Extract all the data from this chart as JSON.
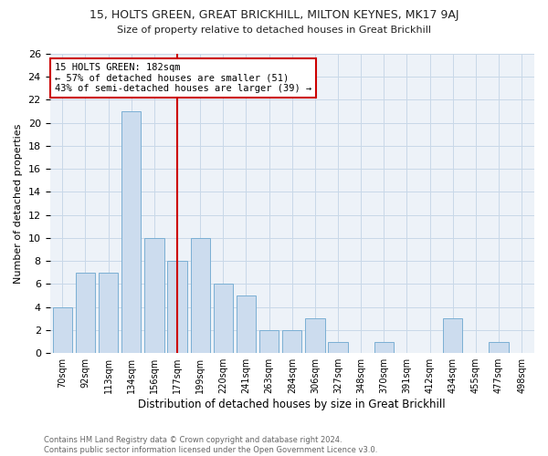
{
  "title1": "15, HOLTS GREEN, GREAT BRICKHILL, MILTON KEYNES, MK17 9AJ",
  "title2": "Size of property relative to detached houses in Great Brickhill",
  "xlabel": "Distribution of detached houses by size in Great Brickhill",
  "ylabel": "Number of detached properties",
  "footer1": "Contains HM Land Registry data © Crown copyright and database right 2024.",
  "footer2": "Contains public sector information licensed under the Open Government Licence v3.0.",
  "categories": [
    "70sqm",
    "92sqm",
    "113sqm",
    "134sqm",
    "156sqm",
    "177sqm",
    "199sqm",
    "220sqm",
    "241sqm",
    "263sqm",
    "284sqm",
    "306sqm",
    "327sqm",
    "348sqm",
    "370sqm",
    "391sqm",
    "412sqm",
    "434sqm",
    "455sqm",
    "477sqm",
    "498sqm"
  ],
  "values": [
    4,
    7,
    7,
    21,
    10,
    8,
    10,
    6,
    5,
    2,
    2,
    3,
    1,
    0,
    1,
    0,
    0,
    3,
    0,
    1,
    0
  ],
  "bar_color": "#ccdcee",
  "bar_edge_color": "#7aafd4",
  "highlight_line_index": 5,
  "annotation_title": "15 HOLTS GREEN: 182sqm",
  "annotation_line1": "← 57% of detached houses are smaller (51)",
  "annotation_line2": "43% of semi-detached houses are larger (39) →",
  "box_color": "#cc0000",
  "ylim": [
    0,
    26
  ],
  "yticks": [
    0,
    2,
    4,
    6,
    8,
    10,
    12,
    14,
    16,
    18,
    20,
    22,
    24,
    26
  ],
  "grid_color": "#c8d8e8",
  "background_color": "#edf2f8"
}
